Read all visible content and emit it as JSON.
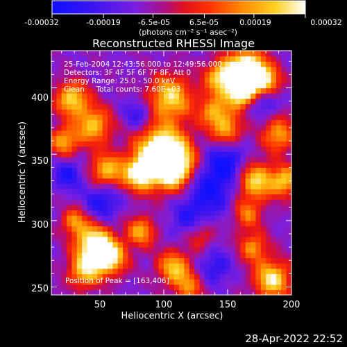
{
  "colorbar": {
    "tick_labels": [
      "-0.00032",
      "-0.00019",
      "-6.5e-05",
      "6.5e-05",
      "0.00019",
      "0.00032"
    ],
    "tick_values": [
      -0.00032,
      -0.00019,
      -6.5e-05,
      6.5e-05,
      0.00019,
      0.00032
    ],
    "range": [
      -0.00032,
      0.00032
    ],
    "units": "(photons cm⁻² s⁻¹ asec⁻²)",
    "colors": [
      "#1010ff",
      "#7a1fe0",
      "#cc1040",
      "#ff2000",
      "#ff8a00",
      "#ffee60",
      "#ffffff"
    ]
  },
  "chart_data": {
    "type": "heatmap",
    "title": "Reconstructed RHESSI Image",
    "xlabel": "Heliocentric X (arcsec)",
    "ylabel": "Heliocentric Y (arcsec)",
    "xlim": [
      12,
      200
    ],
    "ylim": [
      244,
      428
    ],
    "x_ticks": [
      50,
      100,
      150,
      200
    ],
    "y_ticks": [
      250,
      300,
      350,
      400
    ],
    "x_tick_labels": [
      "50",
      "100",
      "150",
      "200"
    ],
    "y_tick_labels": [
      "250",
      "300",
      "350",
      "400"
    ],
    "annotations": [
      "25-Feb-2004 12:43:56.000 to 12:49:56.000",
      "Detectors: 3F 4F 5F 6F 7F 8F, Att 0",
      "Energy Range: 25.0 - 50.0 keV",
      "Clean     Total counts: 7.60E+03"
    ],
    "peak_label": "Position of Peak = [163,406]",
    "peak": [
      163,
      406
    ]
  },
  "footer": {
    "timestamp": "28-Apr-2022 22:52"
  }
}
